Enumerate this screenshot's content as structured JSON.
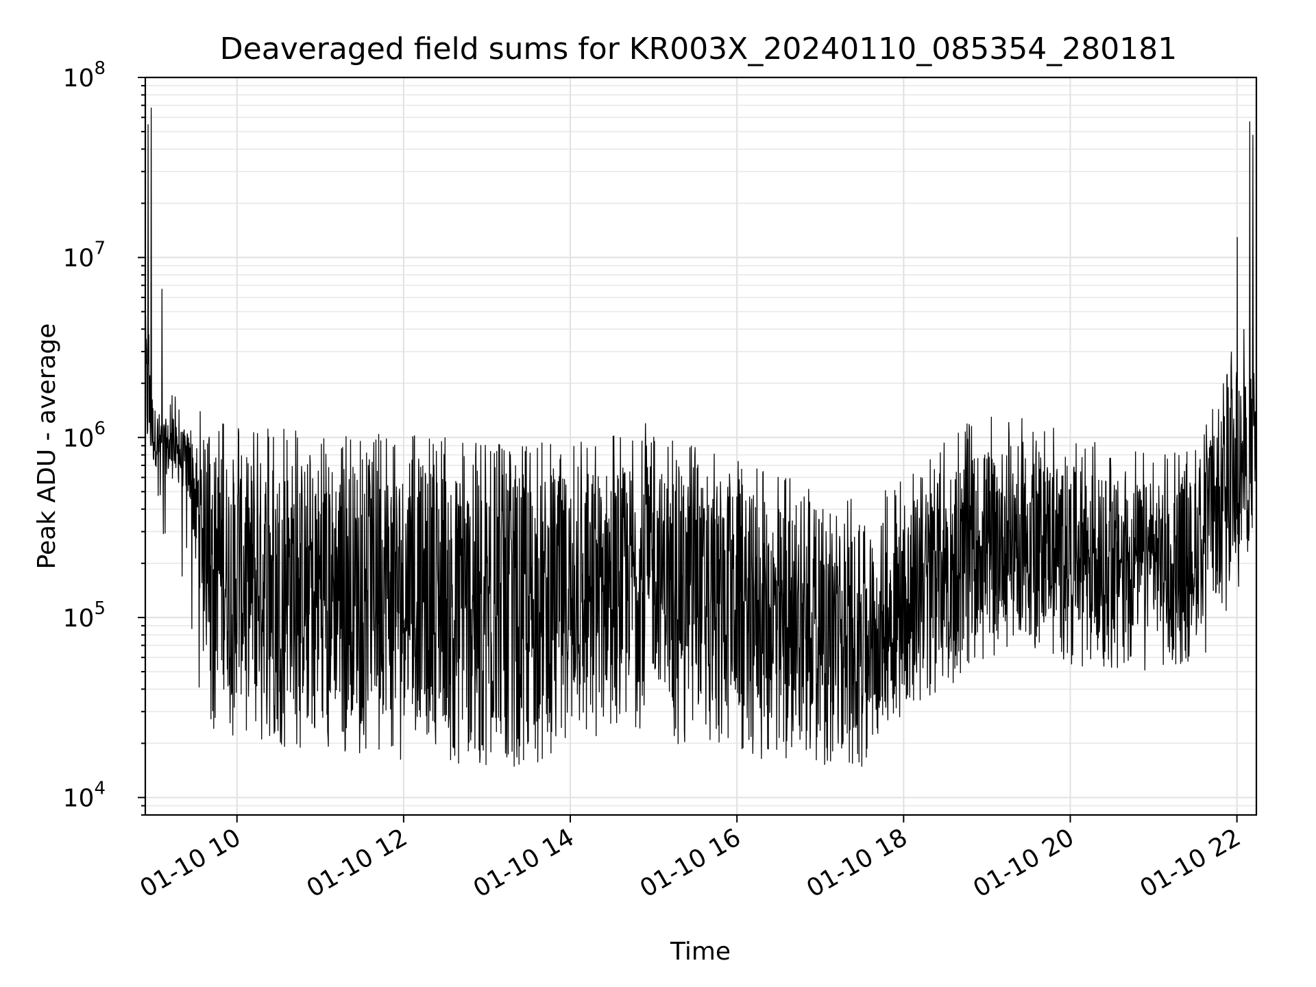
{
  "chart_data": {
    "type": "line",
    "title": "Deaveraged field sums for KR003X_20240110_085354_280181",
    "xlabel": "Time",
    "ylabel": "Peak ADU - average",
    "yscale": "log",
    "grid": true,
    "grid_minor": true,
    "x_range": [
      "2024-01-10 08:54",
      "2024-01-10 22:14"
    ],
    "ylim": [
      8000,
      100000000
    ],
    "x_ticks": [
      "01-10 10",
      "01-10 12",
      "01-10 14",
      "01-10 16",
      "01-10 18",
      "01-10 20",
      "01-10 22"
    ],
    "y_ticks": [
      {
        "base": "10",
        "exp": "4"
      },
      {
        "base": "10",
        "exp": "5"
      },
      {
        "base": "10",
        "exp": "6"
      },
      {
        "base": "10",
        "exp": "7"
      },
      {
        "base": "10",
        "exp": "8"
      }
    ],
    "series": [
      {
        "color": "#000000",
        "hours": [
          8.9,
          9.0,
          9.2,
          9.4,
          9.6,
          9.8,
          10.0,
          10.5,
          11.0,
          11.5,
          12.0,
          12.5,
          13.0,
          13.5,
          14.0,
          14.5,
          15.0,
          15.5,
          16.0,
          16.5,
          17.0,
          17.5,
          18.0,
          18.5,
          19.0,
          19.5,
          20.0,
          20.5,
          21.0,
          21.5,
          22.0,
          22.23
        ],
        "upper": [
          5000000,
          1500000,
          1200000,
          1100000,
          900000,
          850000,
          800000,
          800000,
          780000,
          750000,
          720000,
          700000,
          650000,
          620000,
          650000,
          700000,
          700000,
          600000,
          500000,
          420000,
          350000,
          300000,
          400000,
          700000,
          900000,
          900000,
          700000,
          600000,
          550000,
          600000,
          2000000,
          2500000
        ],
        "lower": [
          800000,
          700000,
          600000,
          500000,
          100000,
          40000,
          35000,
          35000,
          30000,
          30000,
          28000,
          25000,
          20000,
          22000,
          30000,
          40000,
          45000,
          35000,
          28000,
          25000,
          25000,
          22000,
          40000,
          60000,
          90000,
          100000,
          90000,
          80000,
          80000,
          85000,
          200000,
          300000
        ],
        "floor": [
          600000,
          400000,
          150000,
          60000,
          25000,
          22000,
          20000,
          19000,
          18000,
          17000,
          16000,
          15000,
          14500,
          15000,
          18000,
          22000,
          24000,
          17000,
          16000,
          16000,
          15000,
          14000,
          30000,
          40000,
          60000,
          65000,
          55000,
          50000,
          48000,
          52000,
          90000,
          150000
        ],
        "spikes": [
          {
            "hour": 8.93,
            "value": 55000000
          },
          {
            "hour": 8.97,
            "value": 68000000
          },
          {
            "hour": 9.1,
            "value": 6700000
          },
          {
            "hour": 14.9,
            "value": 1200000
          },
          {
            "hour": 21.93,
            "value": 3000000
          },
          {
            "hour": 22.0,
            "value": 13000000
          },
          {
            "hour": 22.08,
            "value": 4000000
          },
          {
            "hour": 22.15,
            "value": 57000000
          },
          {
            "hour": 22.19,
            "value": 48000000
          }
        ]
      }
    ]
  }
}
